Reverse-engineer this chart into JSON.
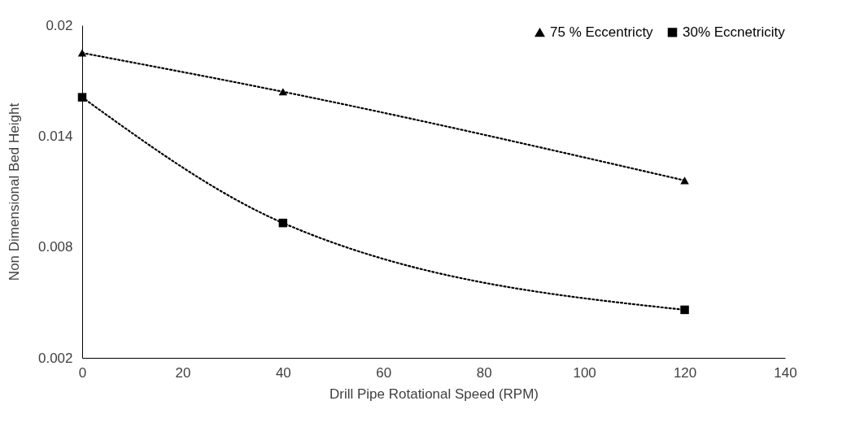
{
  "chart_data": {
    "type": "line",
    "xlabel": "Drill Pipe Rotational Speed (RPM)",
    "ylabel": "Non Dimensional Bed Height",
    "x": [
      0,
      40,
      120
    ],
    "series": [
      {
        "name": "75 % Eccentricty",
        "color": "#000000",
        "marker": "triangle",
        "values": [
          0.0185,
          0.0164,
          0.0116
        ]
      },
      {
        "name": "30% Eccnetricity",
        "color": "#000000",
        "marker": "square",
        "values": [
          0.0161,
          0.0093,
          0.0046
        ]
      }
    ],
    "xlim": [
      0,
      140
    ],
    "xticks": [
      0,
      20,
      40,
      60,
      80,
      100,
      120,
      140
    ],
    "ylim": [
      0.002,
      0.02
    ],
    "yticks": [
      0.002,
      0.008,
      0.014,
      0.02
    ],
    "grid": false,
    "legend": "top right",
    "line_style": "dotted"
  }
}
